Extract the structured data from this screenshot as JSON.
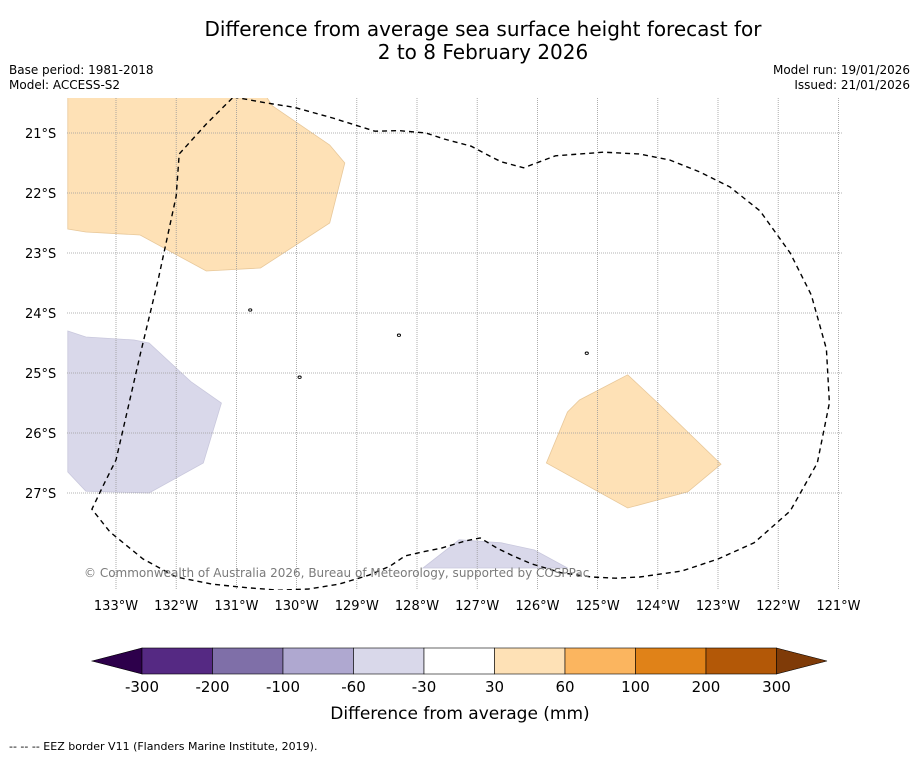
{
  "title": {
    "line1": "Difference from average sea surface height forecast for",
    "line2": "2 to 8 February 2026"
  },
  "meta": {
    "base_period": "Base period: 1981-2018",
    "model": "Model: ACCESS-S2",
    "model_run": "Model run: 19/01/2026",
    "issued": "Issued: 21/01/2026"
  },
  "copyright": "© Commonwealth of Australia 2026, Bureau of Meteorology, supported by COSPPac",
  "footnote": "-- -- -- EEZ border V11 (Flanders Marine Institute, 2019).",
  "map": {
    "lat_labels": [
      "21°S",
      "22°S",
      "23°S",
      "24°S",
      "25°S",
      "26°S",
      "27°S"
    ],
    "lon_labels": [
      "133°W",
      "132°W",
      "131°W",
      "130°W",
      "129°W",
      "128°W",
      "127°W",
      "126°W",
      "125°W",
      "124°W",
      "123°W",
      "122°W",
      "121°W"
    ]
  },
  "chart_data": {
    "type": "heatmap",
    "title": "Difference from average sea surface height forecast for 2 to 8 February 2026",
    "colorbar": {
      "label": "Difference from average (mm)",
      "bounds": [
        "-300",
        "-200",
        "-100",
        "-60",
        "-30",
        "30",
        "60",
        "100",
        "200",
        "300"
      ],
      "colors": [
        "#552983",
        "#7f6fa8",
        "#afa8d0",
        "#d9d8ea",
        "#ffffff",
        "#fee1b6",
        "#fbb55f",
        "#e08218",
        "#b35807"
      ],
      "under_color": "#2d004b",
      "over_color": "#7f3b08"
    },
    "regions": [
      {
        "category": "30 to 60",
        "color": "#fee1b6",
        "points": [
          [
            -133.8,
            -20.6
          ],
          [
            -133.8,
            -22.6
          ],
          [
            -133.5,
            -22.65
          ],
          [
            -132.6,
            -22.7
          ],
          [
            -131.5,
            -23.3
          ],
          [
            -130.6,
            -23.25
          ],
          [
            -129.45,
            -22.5
          ],
          [
            -129.2,
            -21.5
          ],
          [
            -129.45,
            -21.2
          ],
          [
            -130.4,
            -20.55
          ],
          [
            -130.5,
            -20.4
          ],
          [
            -133.8,
            -20.4
          ]
        ]
      },
      {
        "category": "-60 to -30",
        "color": "#d9d8ea",
        "points": [
          [
            -133.8,
            -24.3
          ],
          [
            -133.5,
            -24.4
          ],
          [
            -132.7,
            -24.45
          ],
          [
            -132.45,
            -24.5
          ],
          [
            -131.75,
            -25.15
          ],
          [
            -131.25,
            -25.5
          ],
          [
            -131.55,
            -26.5
          ],
          [
            -132.45,
            -27.0
          ],
          [
            -133.5,
            -26.97
          ],
          [
            -133.8,
            -26.65
          ]
        ]
      },
      {
        "category": "30 to 60",
        "color": "#fee1b6",
        "points": [
          [
            -124.5,
            -25.03
          ],
          [
            -125.3,
            -25.45
          ],
          [
            -125.5,
            -25.65
          ],
          [
            -125.85,
            -26.5
          ],
          [
            -124.5,
            -27.25
          ],
          [
            -123.5,
            -26.98
          ],
          [
            -122.95,
            -26.52
          ],
          [
            -124.0,
            -25.5
          ]
        ]
      },
      {
        "category": "-60 to -30",
        "color": "#d9d8ea",
        "points": [
          [
            -127.3,
            -27.78
          ],
          [
            -126.6,
            -27.83
          ],
          [
            -126.05,
            -27.95
          ],
          [
            -125.5,
            -28.25
          ],
          [
            -127.9,
            -28.25
          ]
        ]
      }
    ],
    "eez_border": [
      [
        -131.05,
        -20.4
      ],
      [
        -130.5,
        -20.5
      ],
      [
        -130.05,
        -20.57
      ],
      [
        -129.4,
        -20.75
      ],
      [
        -128.7,
        -20.97
      ],
      [
        -128.3,
        -20.96
      ],
      [
        -127.85,
        -21.0
      ],
      [
        -127.55,
        -21.1
      ],
      [
        -127.1,
        -21.22
      ],
      [
        -126.8,
        -21.38
      ],
      [
        -126.6,
        -21.48
      ],
      [
        -126.23,
        -21.58
      ],
      [
        -125.7,
        -21.38
      ],
      [
        -125.3,
        -21.35
      ],
      [
        -124.9,
        -21.32
      ],
      [
        -124.3,
        -21.35
      ],
      [
        -123.8,
        -21.45
      ],
      [
        -123.3,
        -21.65
      ],
      [
        -122.8,
        -21.9
      ],
      [
        -122.3,
        -22.3
      ],
      [
        -121.8,
        -23.0
      ],
      [
        -121.45,
        -23.7
      ],
      [
        -121.2,
        -24.6
      ],
      [
        -121.15,
        -25.5
      ],
      [
        -121.35,
        -26.5
      ],
      [
        -121.8,
        -27.3
      ],
      [
        -122.4,
        -27.83
      ],
      [
        -123.0,
        -28.1
      ],
      [
        -123.6,
        -28.3
      ],
      [
        -124.3,
        -28.4
      ],
      [
        -124.7,
        -28.42
      ],
      [
        -125.1,
        -28.4
      ],
      [
        -125.6,
        -28.33
      ],
      [
        -126.1,
        -28.18
      ],
      [
        -126.4,
        -28.05
      ],
      [
        -126.65,
        -27.93
      ],
      [
        -126.95,
        -27.75
      ],
      [
        -127.2,
        -27.8
      ],
      [
        -127.6,
        -27.92
      ],
      [
        -127.9,
        -27.98
      ],
      [
        -128.2,
        -28.05
      ],
      [
        -128.45,
        -28.22
      ],
      [
        -128.8,
        -28.37
      ],
      [
        -129.3,
        -28.52
      ],
      [
        -129.8,
        -28.6
      ],
      [
        -130.3,
        -28.62
      ],
      [
        -130.8,
        -28.58
      ],
      [
        -131.4,
        -28.52
      ],
      [
        -132.0,
        -28.4
      ],
      [
        -132.55,
        -28.1
      ],
      [
        -133.1,
        -27.65
      ],
      [
        -133.4,
        -27.27
      ],
      [
        -133.2,
        -26.85
      ],
      [
        -133.0,
        -26.45
      ],
      [
        -132.85,
        -25.8
      ],
      [
        -132.6,
        -24.7
      ],
      [
        -132.3,
        -23.45
      ],
      [
        -132.0,
        -22.05
      ],
      [
        -131.95,
        -21.35
      ],
      [
        -131.5,
        -20.85
      ],
      [
        -131.05,
        -20.4
      ]
    ],
    "islands": [
      [
        -130.77,
        -23.95
      ],
      [
        -128.3,
        -24.37
      ],
      [
        -129.95,
        -25.07
      ],
      [
        -125.18,
        -24.67
      ]
    ]
  }
}
